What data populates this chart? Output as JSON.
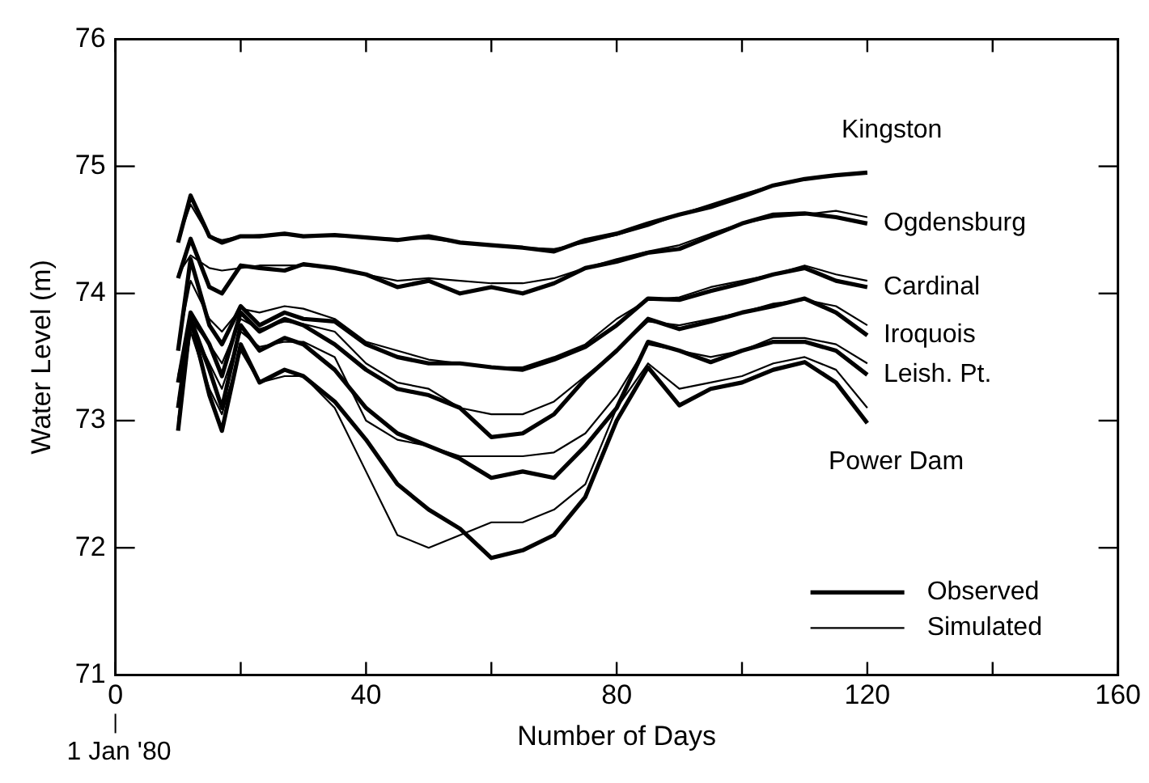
{
  "chart_data": {
    "type": "line",
    "xlabel": "Number of Days",
    "ylabel": "Water Level (m)",
    "x": [
      10,
      12,
      15,
      17,
      20,
      23,
      27,
      30,
      35,
      40,
      45,
      50,
      55,
      60,
      65,
      70,
      75,
      80,
      85,
      90,
      95,
      100,
      105,
      110,
      115,
      120
    ],
    "series": [
      {
        "name": "Observed",
        "color": "#000000",
        "values": [
          74.4,
          74.77,
          74.45,
          74.4,
          74.45,
          74.45,
          74.47,
          74.45,
          74.46,
          74.44,
          74.42,
          74.45,
          74.4,
          74.38,
          74.36,
          74.33,
          74.42,
          74.47,
          74.55,
          74.62,
          74.68,
          74.76,
          74.85,
          74.9,
          74.93,
          74.95
        ]
      },
      {
        "name": "Simulated",
        "color": "#000000",
        "values": [
          74.42,
          74.7,
          74.45,
          74.42,
          74.45,
          74.46,
          74.46,
          74.45,
          74.45,
          74.44,
          74.43,
          74.43,
          74.4,
          74.38,
          74.36,
          74.35,
          74.4,
          74.46,
          74.53,
          74.62,
          74.7,
          74.78,
          74.85,
          74.9,
          74.93,
          74.95
        ]
      },
      {
        "color": "#000000",
        "values": [
          74.12,
          74.43,
          74.05,
          74.0,
          74.22,
          74.2,
          74.18,
          74.23,
          74.2,
          74.15,
          74.05,
          74.1,
          74.0,
          74.05,
          74.0,
          74.08,
          74.2,
          74.25,
          74.32,
          74.35,
          74.45,
          74.55,
          74.62,
          74.63,
          74.6,
          74.55
        ]
      },
      {
        "color": "#000000",
        "values": [
          74.15,
          74.3,
          74.2,
          74.18,
          74.2,
          74.22,
          74.22,
          74.22,
          74.2,
          74.15,
          74.1,
          74.12,
          74.1,
          74.08,
          74.08,
          74.12,
          74.2,
          74.27,
          74.33,
          74.38,
          74.47,
          74.55,
          74.6,
          74.62,
          74.65,
          74.6
        ]
      },
      {
        "color": "#000000",
        "values": [
          73.55,
          74.27,
          73.75,
          73.6,
          73.9,
          73.75,
          73.85,
          73.8,
          73.78,
          73.6,
          73.5,
          73.45,
          73.45,
          73.42,
          73.4,
          73.48,
          73.58,
          73.75,
          73.96,
          73.95,
          74.02,
          74.08,
          74.15,
          74.2,
          74.1,
          74.05
        ]
      },
      {
        "color": "#000000",
        "values": [
          73.6,
          74.1,
          73.8,
          73.7,
          73.88,
          73.85,
          73.9,
          73.88,
          73.8,
          73.62,
          73.55,
          73.48,
          73.45,
          73.42,
          73.42,
          73.5,
          73.6,
          73.8,
          73.95,
          73.97,
          74.05,
          74.1,
          74.15,
          74.22,
          74.15,
          74.1
        ]
      },
      {
        "color": "#000000",
        "values": [
          73.3,
          73.85,
          73.6,
          73.35,
          73.85,
          73.7,
          73.8,
          73.75,
          73.6,
          73.4,
          73.25,
          73.2,
          73.1,
          72.87,
          72.9,
          73.05,
          73.33,
          73.55,
          73.8,
          73.72,
          73.78,
          73.85,
          73.9,
          73.96,
          73.85,
          73.67
        ]
      },
      {
        "color": "#000000",
        "values": [
          73.35,
          73.8,
          73.6,
          73.45,
          73.8,
          73.72,
          73.78,
          73.76,
          73.7,
          73.45,
          73.3,
          73.25,
          73.1,
          73.05,
          73.05,
          73.15,
          73.35,
          73.55,
          73.78,
          73.75,
          73.8,
          73.85,
          73.92,
          73.95,
          73.9,
          73.75
        ]
      },
      {
        "color": "#000000",
        "values": [
          73.1,
          73.8,
          73.4,
          73.1,
          73.75,
          73.55,
          73.65,
          73.6,
          73.4,
          73.1,
          72.9,
          72.8,
          72.7,
          72.55,
          72.6,
          72.55,
          72.8,
          73.1,
          73.62,
          73.55,
          73.46,
          73.55,
          73.62,
          73.62,
          73.55,
          73.36
        ]
      },
      {
        "color": "#000000",
        "values": [
          73.15,
          73.75,
          73.45,
          73.25,
          73.7,
          73.58,
          73.62,
          73.62,
          73.5,
          73.0,
          72.85,
          72.8,
          72.72,
          72.72,
          72.72,
          72.75,
          72.9,
          73.2,
          73.6,
          73.55,
          73.5,
          73.55,
          73.65,
          73.65,
          73.6,
          73.45
        ]
      },
      {
        "color": "#000000",
        "values": [
          72.92,
          73.8,
          73.2,
          72.92,
          73.6,
          73.3,
          73.4,
          73.35,
          73.15,
          72.85,
          72.5,
          72.3,
          72.15,
          71.92,
          71.98,
          72.1,
          72.4,
          73.0,
          73.42,
          73.12,
          73.25,
          73.3,
          73.4,
          73.46,
          73.3,
          72.98
        ]
      },
      {
        "color": "#000000",
        "values": [
          73.0,
          73.7,
          73.25,
          73.05,
          73.55,
          73.3,
          73.35,
          73.35,
          73.1,
          72.6,
          72.1,
          72.0,
          72.1,
          72.2,
          72.2,
          72.3,
          72.5,
          73.1,
          73.45,
          73.25,
          73.3,
          73.35,
          73.45,
          73.5,
          73.4,
          73.1
        ]
      }
    ],
    "xlim": [
      0,
      160
    ],
    "xticks": [
      0,
      {
        "value": 20,
        "label": null
      },
      40,
      {
        "value": 60,
        "label": null
      },
      80,
      {
        "value": 100,
        "label": null
      },
      120,
      {
        "value": 140,
        "label": null
      },
      160
    ],
    "ylim": [
      71,
      76
    ],
    "yticks": [
      71,
      72,
      73,
      74,
      75,
      76
    ],
    "grid": false,
    "legend": "bottom right",
    "marker": "none",
    "line_style": "solid",
    "annotations": [
      "Kingston",
      "Ogdensburg",
      "Cardinal",
      "Iroquois",
      "Leish. Pt.",
      "Power Dam",
      "1 Jan '80"
    ]
  }
}
